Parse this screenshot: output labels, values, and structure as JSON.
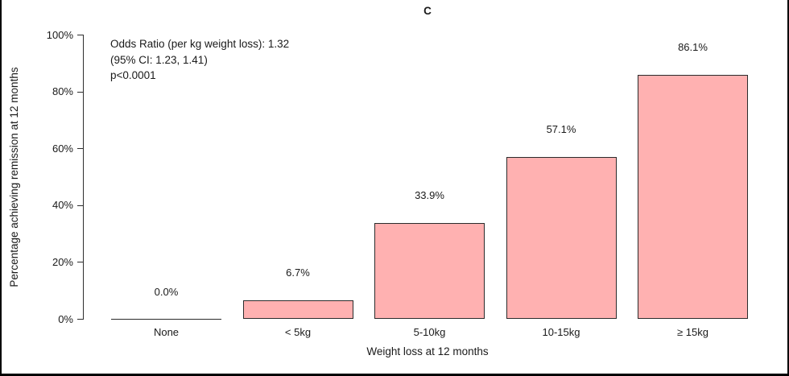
{
  "chart_data": {
    "type": "bar",
    "title": "C",
    "categories": [
      "None",
      "< 5kg",
      "5-10kg",
      "10-15kg",
      "≥ 15kg"
    ],
    "values": [
      0.0,
      6.7,
      33.9,
      57.1,
      86.1
    ],
    "bar_labels": [
      "0.0%",
      "6.7%",
      "33.9%",
      "57.1%",
      "86.1%"
    ],
    "xlabel": "Weight loss at 12 months",
    "ylabel": "Percentage achieving remission at 12 months",
    "ylim": [
      0,
      100
    ],
    "yticks": [
      0,
      20,
      40,
      60,
      80,
      100
    ],
    "ytick_labels": [
      "0%",
      "20%",
      "40%",
      "60%",
      "80%",
      "100%"
    ],
    "grid": false,
    "legend": null,
    "bar_fill_color": "#ffb1b1",
    "bar_border_color": "#2b2b2b",
    "annotation": [
      "Odds Ratio (per kg weight loss): 1.32",
      "(95% CI: 1.23, 1.41)",
      "p<0.0001"
    ]
  }
}
